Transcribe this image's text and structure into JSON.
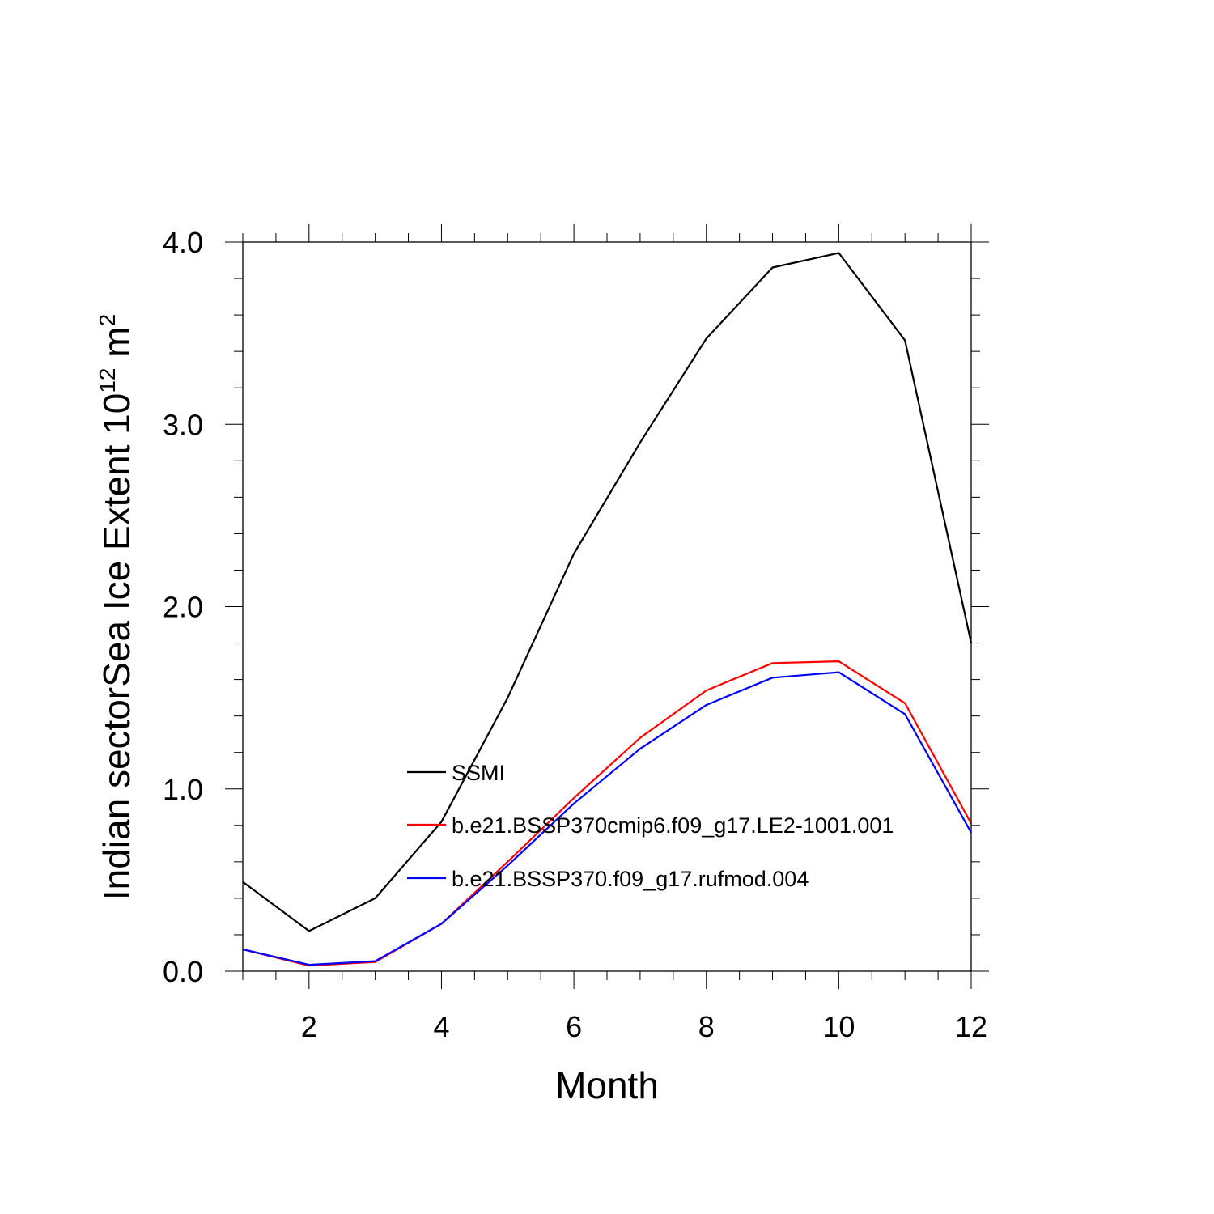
{
  "chart_data": {
    "type": "line",
    "xlabel": "Month",
    "ylabel_main": "Indian sectorSea Ice Extent 10",
    "ylabel_sup1": "12",
    "ylabel_mid": " m",
    "ylabel_sup2": "2",
    "xlim": [
      1,
      12
    ],
    "ylim": [
      0,
      4
    ],
    "x_ticks": [
      2,
      4,
      6,
      8,
      10,
      12
    ],
    "x_tick_labels": [
      "2",
      "4",
      "6",
      "8",
      "10",
      "12"
    ],
    "y_ticks": [
      0,
      1,
      2,
      3,
      4
    ],
    "y_tick_labels": [
      "0.0",
      "1.0",
      "2.0",
      "3.0",
      "4.0"
    ],
    "grid": false,
    "legend_position": "center-right inside plot",
    "x": [
      1,
      2,
      3,
      4,
      5,
      6,
      7,
      8,
      9,
      10,
      11,
      12
    ],
    "series": [
      {
        "name": "SSMI",
        "color": "#000000",
        "values": [
          0.49,
          0.22,
          0.4,
          0.82,
          1.5,
          2.29,
          2.9,
          3.47,
          3.86,
          3.94,
          3.46,
          1.8
        ]
      },
      {
        "name": "b.e21.BSSP370cmip6.f09_g17.LE2-1001.001",
        "color": "#ff0000",
        "values": [
          0.12,
          0.03,
          0.05,
          0.26,
          0.6,
          0.95,
          1.28,
          1.54,
          1.69,
          1.7,
          1.47,
          0.81
        ]
      },
      {
        "name": "b.e21.BSSP370.f09_g17.rufmod.004",
        "color": "#0000ff",
        "values": [
          0.12,
          0.035,
          0.055,
          0.26,
          0.58,
          0.92,
          1.22,
          1.46,
          1.61,
          1.64,
          1.41,
          0.76
        ]
      }
    ]
  }
}
